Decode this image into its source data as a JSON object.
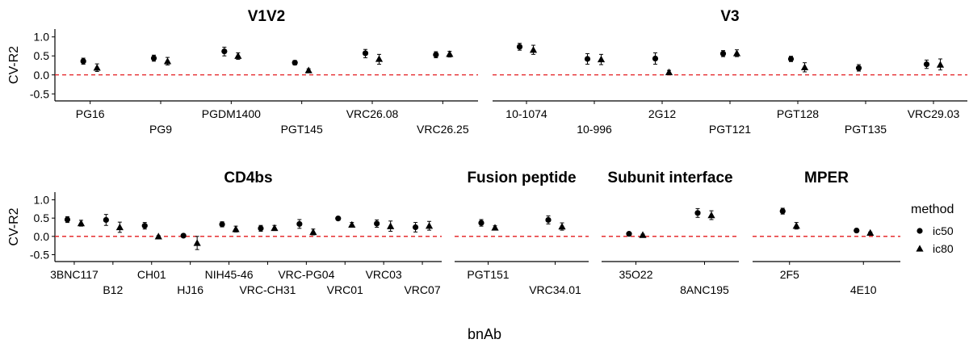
{
  "figure": {
    "xlabel": "bnAb",
    "ylabel": "CV-R2",
    "legend": {
      "title": "method",
      "position": "right",
      "items": [
        {
          "label": "ic50",
          "shape": "circle"
        },
        {
          "label": "ic80",
          "shape": "triangle"
        }
      ]
    }
  },
  "chart_data": [
    {
      "type": "scatter",
      "title": "V1V2",
      "ylim": [
        -0.6,
        1.1
      ],
      "yticks": [
        -0.5,
        0.0,
        0.5,
        1.0
      ],
      "ytick_labels": [
        "-0.5",
        "0.0",
        "0.5",
        "1.0"
      ],
      "reference_line": {
        "y": 0,
        "color": "#e41a1c",
        "style": "dashed"
      },
      "categories": [
        "PG16",
        "PG9",
        "PGDM1400",
        "PGT145",
        "VRC26.08",
        "VRC26.25"
      ],
      "series": [
        {
          "name": "ic50",
          "values": [
            0.36,
            0.44,
            0.62,
            0.32,
            0.57,
            0.53
          ],
          "lower": [
            0.28,
            0.36,
            0.5,
            0.26,
            0.45,
            0.45
          ],
          "upper": [
            0.44,
            0.52,
            0.73,
            0.38,
            0.67,
            0.61
          ]
        },
        {
          "name": "ic80",
          "values": [
            0.19,
            0.36,
            0.5,
            0.12,
            0.42,
            0.55
          ],
          "lower": [
            0.09,
            0.26,
            0.41,
            0.08,
            0.28,
            0.47
          ],
          "upper": [
            0.29,
            0.46,
            0.58,
            0.16,
            0.54,
            0.62
          ]
        }
      ]
    },
    {
      "type": "scatter",
      "title": "V3",
      "ylim": [
        -0.6,
        1.1
      ],
      "yticks": [
        -0.5,
        0.0,
        0.5,
        1.0
      ],
      "ytick_labels": [
        "-0.5",
        "0.0",
        "0.5",
        "1.0"
      ],
      "reference_line": {
        "y": 0,
        "color": "#e41a1c",
        "style": "dashed"
      },
      "categories": [
        "10-1074",
        "10-996",
        "2G12",
        "PGT121",
        "PGT128",
        "PGT135",
        "VRC29.03"
      ],
      "series": [
        {
          "name": "ic50",
          "values": [
            0.74,
            0.42,
            0.43,
            0.56,
            0.42,
            0.18,
            0.28
          ],
          "lower": [
            0.65,
            0.28,
            0.28,
            0.48,
            0.35,
            0.1,
            0.17
          ],
          "upper": [
            0.83,
            0.56,
            0.58,
            0.64,
            0.49,
            0.27,
            0.39
          ]
        },
        {
          "name": "ic80",
          "values": [
            0.66,
            0.41,
            0.07,
            0.57,
            0.2,
            null,
            0.27
          ],
          "lower": [
            0.54,
            0.27,
            0.02,
            0.48,
            0.08,
            null,
            0.13
          ],
          "upper": [
            0.78,
            0.54,
            0.12,
            0.66,
            0.32,
            null,
            0.42
          ]
        }
      ]
    },
    {
      "type": "scatter",
      "title": "CD4bs",
      "ylim": [
        -0.6,
        1.1
      ],
      "yticks": [
        -0.5,
        0.0,
        0.5,
        1.0
      ],
      "ytick_labels": [
        "-0.5",
        "0.0",
        "0.5",
        "1.0"
      ],
      "reference_line": {
        "y": 0,
        "color": "#e41a1c",
        "style": "dashed"
      },
      "categories": [
        "3BNC117",
        "B12",
        "CH01",
        "HJ16",
        "NIH45-46",
        "VRC-CH31",
        "VRC-PG04",
        "VRC01",
        "VRC03",
        "VRC07"
      ],
      "series": [
        {
          "name": "ic50",
          "values": [
            0.46,
            0.45,
            0.29,
            0.02,
            0.33,
            0.22,
            0.34,
            0.49,
            0.35,
            0.25
          ],
          "lower": [
            0.38,
            0.3,
            0.2,
            0.0,
            0.26,
            0.14,
            0.22,
            0.44,
            0.25,
            0.12
          ],
          "upper": [
            0.54,
            0.6,
            0.38,
            0.04,
            0.4,
            0.3,
            0.46,
            0.54,
            0.45,
            0.38
          ]
        },
        {
          "name": "ic80",
          "values": [
            0.36,
            0.25,
            0.0,
            -0.18,
            0.2,
            0.23,
            0.12,
            0.32,
            0.28,
            0.29
          ],
          "lower": [
            0.28,
            0.11,
            -0.02,
            -0.36,
            0.12,
            0.16,
            0.04,
            0.26,
            0.14,
            0.17
          ],
          "upper": [
            0.44,
            0.39,
            0.02,
            0.0,
            0.28,
            0.3,
            0.2,
            0.38,
            0.42,
            0.41
          ]
        }
      ]
    },
    {
      "type": "scatter",
      "title": "Fusion peptide",
      "ylim": [
        -0.6,
        1.1
      ],
      "yticks": [
        -0.5,
        0.0,
        0.5,
        1.0
      ],
      "ytick_labels": [
        "-0.5",
        "0.0",
        "0.5",
        "1.0"
      ],
      "reference_line": {
        "y": 0,
        "color": "#e41a1c",
        "style": "dashed"
      },
      "categories": [
        "PGT151",
        "VRC34.01"
      ],
      "series": [
        {
          "name": "ic50",
          "values": [
            0.37,
            0.45
          ],
          "lower": [
            0.28,
            0.34
          ],
          "upper": [
            0.46,
            0.56
          ]
        },
        {
          "name": "ic80",
          "values": [
            0.24,
            0.27
          ],
          "lower": [
            0.19,
            0.17
          ],
          "upper": [
            0.29,
            0.37
          ]
        }
      ]
    },
    {
      "type": "scatter",
      "title": "Subunit interface",
      "ylim": [
        -0.6,
        1.1
      ],
      "yticks": [
        -0.5,
        0.0,
        0.5,
        1.0
      ],
      "ytick_labels": [
        "-0.5",
        "0.0",
        "0.5",
        "1.0"
      ],
      "reference_line": {
        "y": 0,
        "color": "#e41a1c",
        "style": "dashed"
      },
      "categories": [
        "35O22",
        "8ANC195"
      ],
      "series": [
        {
          "name": "ic50",
          "values": [
            0.07,
            0.64
          ],
          "lower": [
            0.05,
            0.52
          ],
          "upper": [
            0.09,
            0.76
          ]
        },
        {
          "name": "ic80",
          "values": [
            0.04,
            0.58
          ],
          "lower": [
            0.02,
            0.46
          ],
          "upper": [
            0.06,
            0.7
          ]
        }
      ]
    },
    {
      "type": "scatter",
      "title": "MPER",
      "ylim": [
        -0.6,
        1.1
      ],
      "yticks": [
        -0.5,
        0.0,
        0.5,
        1.0
      ],
      "ytick_labels": [
        "-0.5",
        "0.0",
        "0.5",
        "1.0"
      ],
      "reference_line": {
        "y": 0,
        "color": "#e41a1c",
        "style": "dashed"
      },
      "categories": [
        "2F5",
        "4E10"
      ],
      "series": [
        {
          "name": "ic50",
          "values": [
            0.69,
            0.16
          ],
          "lower": [
            0.61,
            0.14
          ],
          "upper": [
            0.77,
            0.18
          ]
        },
        {
          "name": "ic80",
          "values": [
            0.29,
            0.1
          ],
          "lower": [
            0.2,
            0.08
          ],
          "upper": [
            0.38,
            0.12
          ]
        }
      ]
    }
  ]
}
